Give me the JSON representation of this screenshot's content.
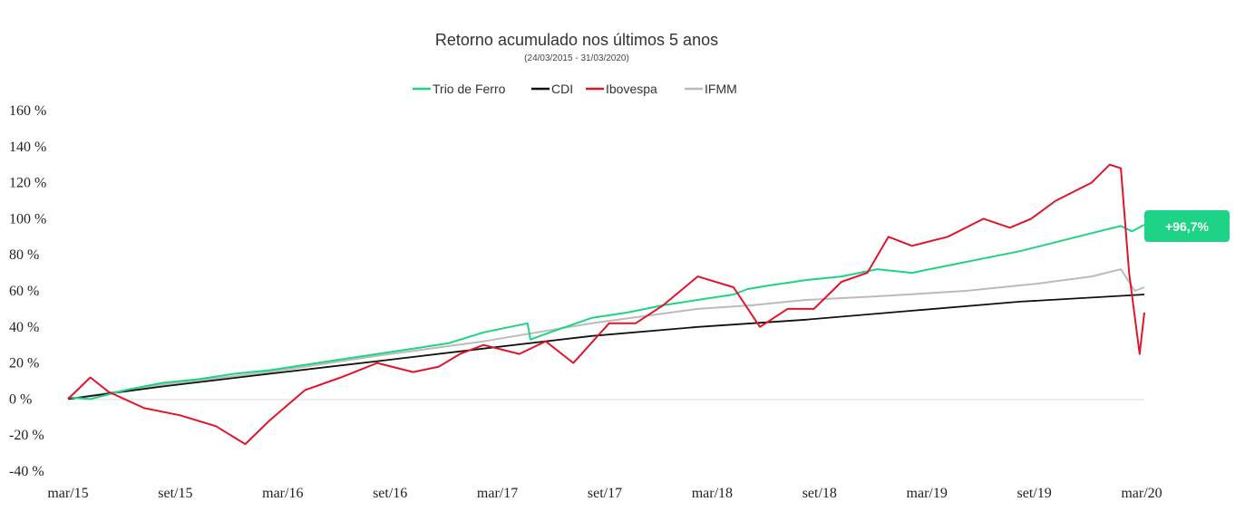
{
  "chart_data": {
    "type": "line",
    "title": "Retorno acumulado nos últimos 5 anos",
    "subtitle": "(24/03/2015 - 31/03/2020)",
    "xlabel": "",
    "ylabel": "",
    "ylim": [
      -40,
      160
    ],
    "y_ticks": [
      "160 %",
      "140 %",
      "120 %",
      "100 %",
      "80 %",
      "60 %",
      "40 %",
      "20 %",
      "0 %",
      "-20 %",
      "-40 %"
    ],
    "x_ticks": [
      "mar/15",
      "set/15",
      "mar/16",
      "set/16",
      "mar/17",
      "set/17",
      "mar/18",
      "set/18",
      "mar/19",
      "set/19",
      "mar/20"
    ],
    "legend_position": "top-center",
    "grid": false,
    "series": [
      {
        "name": "Trio de Ferro",
        "color": "#1ed385",
        "x": [
          "2015-03-24",
          "2015-05-01",
          "2015-07-01",
          "2015-09-01",
          "2015-11-01",
          "2016-01-01",
          "2016-03-01",
          "2016-05-01",
          "2016-07-01",
          "2016-09-01",
          "2016-11-01",
          "2017-01-01",
          "2017-03-01",
          "2017-05-15",
          "2017-05-20",
          "2017-07-01",
          "2017-09-01",
          "2017-11-01",
          "2018-01-01",
          "2018-03-01",
          "2018-05-01",
          "2018-05-25",
          "2018-07-01",
          "2018-09-01",
          "2018-11-01",
          "2019-01-01",
          "2019-03-01",
          "2019-05-01",
          "2019-07-01",
          "2019-09-01",
          "2019-11-01",
          "2020-01-01",
          "2020-02-20",
          "2020-03-10",
          "2020-03-31"
        ],
        "y": [
          1,
          0,
          5,
          9,
          11,
          14,
          16,
          19,
          22,
          25,
          28,
          31,
          37,
          42,
          33,
          38,
          45,
          48,
          52,
          55,
          58,
          61,
          63,
          66,
          68,
          72,
          70,
          74,
          78,
          82,
          87,
          92,
          96,
          93,
          96.7
        ]
      },
      {
        "name": "CDI",
        "color": "#111111",
        "x": [
          "2015-03-24",
          "2015-09-01",
          "2016-03-01",
          "2016-09-01",
          "2017-03-01",
          "2017-09-01",
          "2018-03-01",
          "2018-09-01",
          "2019-03-01",
          "2019-09-01",
          "2020-03-31"
        ],
        "y": [
          0,
          7,
          14,
          21,
          28,
          35,
          40,
          44,
          49,
          54,
          58
        ]
      },
      {
        "name": "Ibovespa",
        "color": "#e0142b",
        "x": [
          "2015-03-24",
          "2015-05-01",
          "2015-06-01",
          "2015-08-01",
          "2015-10-01",
          "2015-12-01",
          "2016-01-20",
          "2016-03-01",
          "2016-05-01",
          "2016-07-01",
          "2016-09-01",
          "2016-11-01",
          "2016-12-15",
          "2017-01-20",
          "2017-03-01",
          "2017-05-01",
          "2017-06-15",
          "2017-08-01",
          "2017-10-01",
          "2017-11-15",
          "2018-01-01",
          "2018-03-01",
          "2018-05-01",
          "2018-06-15",
          "2018-08-01",
          "2018-09-15",
          "2018-11-01",
          "2018-12-15",
          "2019-01-20",
          "2019-03-01",
          "2019-05-01",
          "2019-07-01",
          "2019-08-15",
          "2019-09-20",
          "2019-11-01",
          "2020-01-01",
          "2020-02-01",
          "2020-02-20",
          "2020-03-05",
          "2020-03-23",
          "2020-03-31"
        ],
        "y": [
          0,
          12,
          4,
          -5,
          -9,
          -15,
          -25,
          -12,
          5,
          12,
          20,
          15,
          18,
          25,
          30,
          25,
          32,
          20,
          42,
          42,
          52,
          68,
          62,
          40,
          50,
          50,
          65,
          70,
          90,
          85,
          90,
          100,
          95,
          100,
          110,
          120,
          130,
          128,
          70,
          25,
          48
        ]
      },
      {
        "name": "IFMM",
        "color": "#bbbbbb",
        "x": [
          "2015-03-24",
          "2015-09-01",
          "2016-03-01",
          "2016-09-01",
          "2017-03-01",
          "2017-09-01",
          "2018-03-01",
          "2018-06-01",
          "2018-09-01",
          "2019-01-01",
          "2019-06-01",
          "2019-10-01",
          "2020-01-01",
          "2020-02-20",
          "2020-03-15",
          "2020-03-31"
        ],
        "y": [
          0,
          8,
          15,
          24,
          32,
          42,
          50,
          52,
          55,
          57,
          60,
          64,
          68,
          72,
          60,
          62
        ]
      }
    ],
    "annotations": [
      {
        "text": "+96,7%",
        "series": "Trio de Ferro",
        "color": "#1ed385"
      }
    ]
  }
}
